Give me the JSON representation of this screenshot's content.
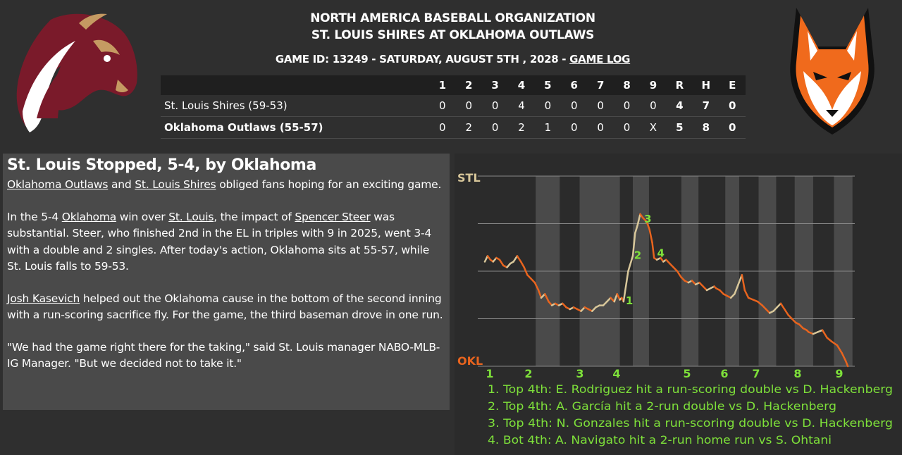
{
  "header": {
    "org": "NORTH AMERICA BASEBALL ORGANIZATION",
    "matchup": "ST. LOUIS SHIRES AT OKLAHOMA OUTLAWS",
    "game_info": "GAME ID: 13249 - SATURDAY, AUGUST 5TH , 2028 - ",
    "game_log_link": "GAME LOG"
  },
  "colors": {
    "background": "#2f2f2f",
    "panel": "#4a4a4a",
    "home_line": "#e8641e",
    "away_line": "#d8c79a",
    "annotation_green": "#7ee03a",
    "shires_maroon": "#7a1a2a",
    "outlaws_orange": "#f06a1c"
  },
  "logos": {
    "left": "horse-head-logo",
    "right": "fox-head-logo"
  },
  "linescore": {
    "columns": [
      "1",
      "2",
      "3",
      "4",
      "5",
      "6",
      "7",
      "8",
      "9",
      "R",
      "H",
      "E"
    ],
    "teams": [
      {
        "name": "St. Louis Shires (59-53)",
        "innings": [
          "0",
          "0",
          "0",
          "4",
          "0",
          "0",
          "0",
          "0",
          "0"
        ],
        "totals": [
          "4",
          "7",
          "0"
        ]
      },
      {
        "name": "Oklahoma Outlaws (55-57)",
        "innings": [
          "0",
          "2",
          "0",
          "2",
          "1",
          "0",
          "0",
          "0",
          "X"
        ],
        "totals": [
          "5",
          "8",
          "0"
        ]
      }
    ]
  },
  "article": {
    "headline": "St. Louis Stopped, 5-4, by Oklahoma",
    "p1": {
      "link1": "Oklahoma Outlaws",
      "t1": " and ",
      "link2": "St. Louis Shires",
      "t2": " obliged fans hoping for an exciting game."
    },
    "p2": {
      "t1": "In the 5-4 ",
      "link1": "Oklahoma",
      "t2": " win over ",
      "link2": "St. Louis",
      "t3": ", the impact of ",
      "link3": "Spencer Steer",
      "t4": " was substantial. Steer, who finished 2nd in the EL in triples with 9 in 2025, went 3-4 with a double and 2 singles. After today's action, Oklahoma sits at 55-57, while St. Louis falls to 59-53."
    },
    "p3": {
      "link1": "Josh Kasevich",
      "t1": " helped out the Oklahoma cause in the bottom of the second inning with a run-scoring sacrifice fly. For the game, the third baseman drove in one run."
    },
    "p4": "\"We had the game right there for the taking,\" said St. Louis manager NABO-MLB-IG Manager. \"But we decided not to take it.\""
  },
  "chart_data": {
    "type": "line",
    "top_label": "STL",
    "bottom_label": "OKL",
    "innings": [
      "1",
      "2",
      "3",
      "4",
      "5",
      "6",
      "7",
      "8",
      "9"
    ],
    "ylim": [
      0,
      1
    ],
    "grid": true,
    "points": [
      [
        0.0,
        0.55
      ],
      [
        0.06,
        0.58
      ],
      [
        0.12,
        0.56
      ],
      [
        0.18,
        0.55
      ],
      [
        0.25,
        0.57
      ],
      [
        0.32,
        0.56
      ],
      [
        0.4,
        0.53
      ],
      [
        0.48,
        0.52
      ],
      [
        0.55,
        0.54
      ],
      [
        0.62,
        0.55
      ],
      [
        0.7,
        0.58
      ],
      [
        0.78,
        0.55
      ],
      [
        0.85,
        0.52
      ],
      [
        0.92,
        0.48
      ],
      [
        1.0,
        0.46
      ],
      [
        1.08,
        0.44
      ],
      [
        1.16,
        0.4
      ],
      [
        1.22,
        0.36
      ],
      [
        1.3,
        0.38
      ],
      [
        1.38,
        0.34
      ],
      [
        1.45,
        0.32
      ],
      [
        1.52,
        0.33
      ],
      [
        1.6,
        0.32
      ],
      [
        1.68,
        0.33
      ],
      [
        1.76,
        0.31
      ],
      [
        1.84,
        0.3
      ],
      [
        1.92,
        0.31
      ],
      [
        2.0,
        0.3
      ],
      [
        2.08,
        0.29
      ],
      [
        2.16,
        0.31
      ],
      [
        2.24,
        0.3
      ],
      [
        2.32,
        0.29
      ],
      [
        2.4,
        0.31
      ],
      [
        2.48,
        0.32
      ],
      [
        2.56,
        0.32
      ],
      [
        2.64,
        0.34
      ],
      [
        2.72,
        0.36
      ],
      [
        2.8,
        0.34
      ],
      [
        2.86,
        0.38
      ],
      [
        2.92,
        0.35
      ],
      [
        2.96,
        0.36
      ],
      [
        3.0,
        0.34
      ],
      [
        3.1,
        0.5
      ],
      [
        3.2,
        0.58
      ],
      [
        3.25,
        0.7
      ],
      [
        3.3,
        0.74
      ],
      [
        3.36,
        0.8
      ],
      [
        3.42,
        0.78
      ],
      [
        3.5,
        0.76
      ],
      [
        3.56,
        0.72
      ],
      [
        3.62,
        0.65
      ],
      [
        3.66,
        0.57
      ],
      [
        3.72,
        0.56
      ],
      [
        3.8,
        0.57
      ],
      [
        3.86,
        0.55
      ],
      [
        3.92,
        0.56
      ],
      [
        4.0,
        0.54
      ],
      [
        4.08,
        0.52
      ],
      [
        4.16,
        0.5
      ],
      [
        4.24,
        0.47
      ],
      [
        4.32,
        0.45
      ],
      [
        4.4,
        0.44
      ],
      [
        4.48,
        0.45
      ],
      [
        4.56,
        0.43
      ],
      [
        4.64,
        0.44
      ],
      [
        4.72,
        0.42
      ],
      [
        4.8,
        0.4
      ],
      [
        4.88,
        0.41
      ],
      [
        4.96,
        0.42
      ],
      [
        5.0,
        0.41
      ],
      [
        5.08,
        0.4
      ],
      [
        5.16,
        0.38
      ],
      [
        5.24,
        0.37
      ],
      [
        5.32,
        0.36
      ],
      [
        5.4,
        0.38
      ],
      [
        5.48,
        0.43
      ],
      [
        5.56,
        0.48
      ],
      [
        5.62,
        0.4
      ],
      [
        5.7,
        0.36
      ],
      [
        5.8,
        0.35
      ],
      [
        5.9,
        0.34
      ],
      [
        6.0,
        0.32
      ],
      [
        6.08,
        0.3
      ],
      [
        6.16,
        0.28
      ],
      [
        6.24,
        0.29
      ],
      [
        6.32,
        0.31
      ],
      [
        6.4,
        0.33
      ],
      [
        6.48,
        0.3
      ],
      [
        6.56,
        0.27
      ],
      [
        6.64,
        0.25
      ],
      [
        6.72,
        0.23
      ],
      [
        6.8,
        0.22
      ],
      [
        6.88,
        0.2
      ],
      [
        6.96,
        0.19
      ],
      [
        7.0,
        0.18
      ],
      [
        7.1,
        0.17
      ],
      [
        7.2,
        0.18
      ],
      [
        7.3,
        0.19
      ],
      [
        7.4,
        0.15
      ],
      [
        7.5,
        0.13
      ],
      [
        7.62,
        0.11
      ],
      [
        7.72,
        0.07
      ],
      [
        7.8,
        0.03
      ],
      [
        7.85,
        0.0
      ]
    ],
    "markers": [
      {
        "label": "1",
        "x": 3.0,
        "y": 0.34
      },
      {
        "label": "2",
        "x": 3.18,
        "y": 0.58
      },
      {
        "label": "3",
        "x": 3.4,
        "y": 0.77
      },
      {
        "label": "4",
        "x": 3.68,
        "y": 0.59
      }
    ],
    "annotations": [
      "1. Top 4th: E. Rodriguez hit a run-scoring double vs D. Hackenberg",
      "2. Top 4th: A. García hit a 2-run double vs D. Hackenberg",
      "3. Top 4th: N. Gonzales hit a run-scoring double vs D. Hackenberg",
      "4. Bot 4th: A. Navigato hit a 2-run home run vs S. Ohtani"
    ]
  }
}
